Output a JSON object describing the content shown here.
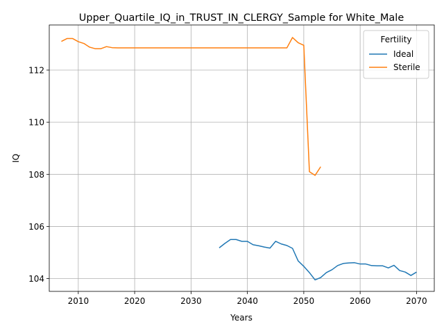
{
  "chart_data": {
    "type": "line",
    "title": "Upper_Quartile_IQ_in_TRUST_IN_CLERGY_Sample for White_Male",
    "xlabel": "Years",
    "ylabel": "IQ",
    "xlim": [
      2004.85,
      2073.15
    ],
    "ylim": [
      103.51,
      113.73
    ],
    "xticks": [
      2010,
      2020,
      2030,
      2040,
      2050,
      2060,
      2070
    ],
    "yticks": [
      104,
      106,
      108,
      110,
      112
    ],
    "grid": true,
    "legend": {
      "title": "Fertility",
      "placement": "top-right"
    },
    "series": [
      {
        "name": "Ideal",
        "color": "#1f77b4",
        "x": [
          2035,
          2036,
          2037,
          2038,
          2039,
          2040,
          2041,
          2042,
          2043,
          2044,
          2045,
          2046,
          2047,
          2048,
          2049,
          2050,
          2051,
          2052,
          2053,
          2054,
          2055,
          2056,
          2057,
          2058,
          2059,
          2060,
          2061,
          2062,
          2063,
          2064,
          2065,
          2066,
          2067,
          2068,
          2069,
          2070
        ],
        "values": [
          105.18,
          105.35,
          105.5,
          105.5,
          105.43,
          105.43,
          105.3,
          105.26,
          105.21,
          105.17,
          105.43,
          105.33,
          105.27,
          105.16,
          104.68,
          104.47,
          104.23,
          103.95,
          104.04,
          104.23,
          104.34,
          104.5,
          104.58,
          104.6,
          104.61,
          104.56,
          104.56,
          104.5,
          104.49,
          104.49,
          104.41,
          104.51,
          104.31,
          104.25,
          104.12,
          104.25
        ]
      },
      {
        "name": "Sterile",
        "color": "#ff7f0e",
        "x": [
          2007,
          2008,
          2009,
          2010,
          2011,
          2012,
          2013,
          2014,
          2015,
          2016,
          2017,
          2018,
          2019,
          2020,
          2021,
          2022,
          2023,
          2024,
          2025,
          2026,
          2027,
          2028,
          2029,
          2030,
          2031,
          2032,
          2033,
          2034,
          2035,
          2036,
          2037,
          2038,
          2039,
          2040,
          2041,
          2042,
          2043,
          2044,
          2045,
          2046,
          2047,
          2048,
          2049,
          2050,
          2051,
          2052,
          2053
        ],
        "values": [
          113.1,
          113.21,
          113.21,
          113.09,
          113.02,
          112.88,
          112.82,
          112.82,
          112.9,
          112.86,
          112.85,
          112.85,
          112.85,
          112.85,
          112.85,
          112.85,
          112.85,
          112.85,
          112.85,
          112.85,
          112.85,
          112.85,
          112.85,
          112.85,
          112.85,
          112.85,
          112.85,
          112.85,
          112.85,
          112.85,
          112.85,
          112.85,
          112.85,
          112.85,
          112.85,
          112.85,
          112.85,
          112.85,
          112.85,
          112.85,
          112.85,
          113.25,
          113.05,
          112.95,
          108.1,
          107.96,
          108.29
        ]
      }
    ]
  }
}
